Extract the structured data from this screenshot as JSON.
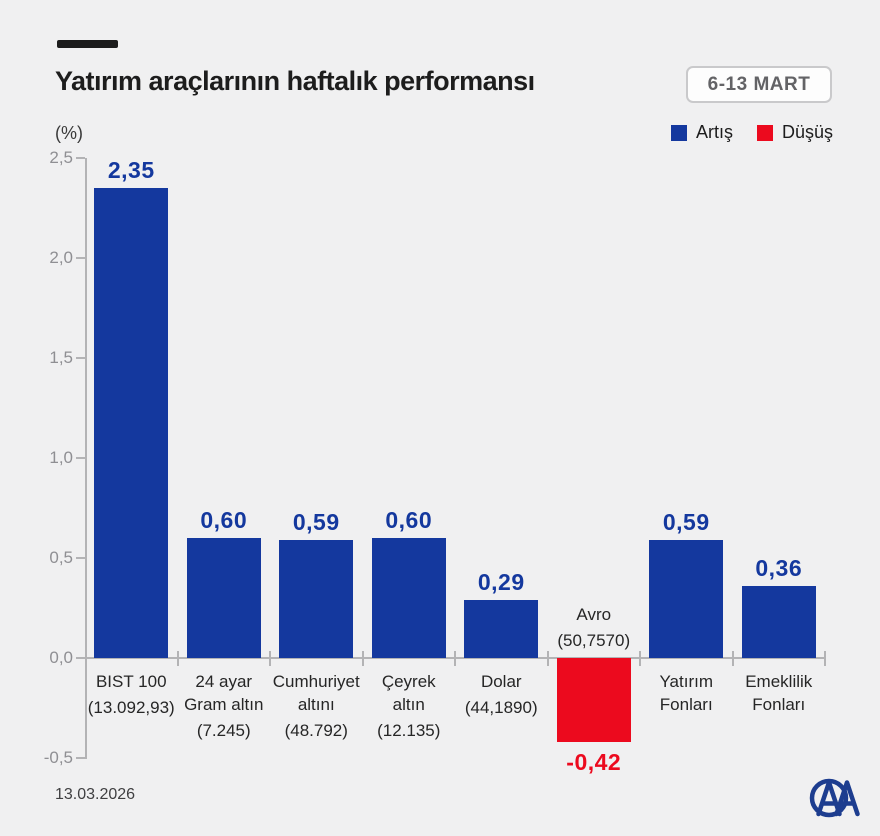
{
  "header": {
    "date_badge": "6-13 MART"
  },
  "footer": {
    "date": "13.03.2026",
    "logo_icon": "aa-anadolu-agency-logo"
  },
  "chart_data": {
    "type": "bar",
    "title": "Yatırım araçlarının haftalık performansı",
    "xlabel": "",
    "ylabel": "(%)",
    "ylim": [
      -0.5,
      2.5
    ],
    "ytick_labels": [
      "2,5",
      "2,0",
      "1,5",
      "1,0",
      "0,5",
      "0,0",
      "-0,5"
    ],
    "grid": false,
    "legend_position": "top-right",
    "legend": [
      {
        "label": "Artış",
        "color": "#14389E"
      },
      {
        "label": "Düşüş",
        "color": "#EC0A1E"
      }
    ],
    "colors": {
      "up": "#14389E",
      "down": "#EC0A1E"
    },
    "bars": [
      {
        "category_lines": [
          "BIST 100"
        ],
        "sub": "(13.092,93)",
        "value": 2.35,
        "label": "2,35",
        "direction": "up"
      },
      {
        "category_lines": [
          "24 ayar",
          "Gram altın"
        ],
        "sub": "(7.245)",
        "value": 0.6,
        "label": "0,60",
        "direction": "up"
      },
      {
        "category_lines": [
          "Cumhuriyet",
          "altını"
        ],
        "sub": "(48.792)",
        "value": 0.59,
        "label": "0,59",
        "direction": "up"
      },
      {
        "category_lines": [
          "Çeyrek",
          "altın"
        ],
        "sub": "(12.135)",
        "value": 0.6,
        "label": "0,60",
        "direction": "up"
      },
      {
        "category_lines": [
          "Dolar"
        ],
        "sub": "(44,1890)",
        "value": 0.29,
        "label": "0,29",
        "direction": "up"
      },
      {
        "category_lines": [
          "Avro"
        ],
        "sub": "(50,7570)",
        "value": -0.42,
        "label": "-0,42",
        "direction": "down"
      },
      {
        "category_lines": [
          "Yatırım",
          "Fonları"
        ],
        "sub": "",
        "value": 0.59,
        "label": "0,59",
        "direction": "up"
      },
      {
        "category_lines": [
          "Emeklilik",
          "Fonları"
        ],
        "sub": "",
        "value": 0.36,
        "label": "0,36",
        "direction": "up"
      }
    ]
  }
}
